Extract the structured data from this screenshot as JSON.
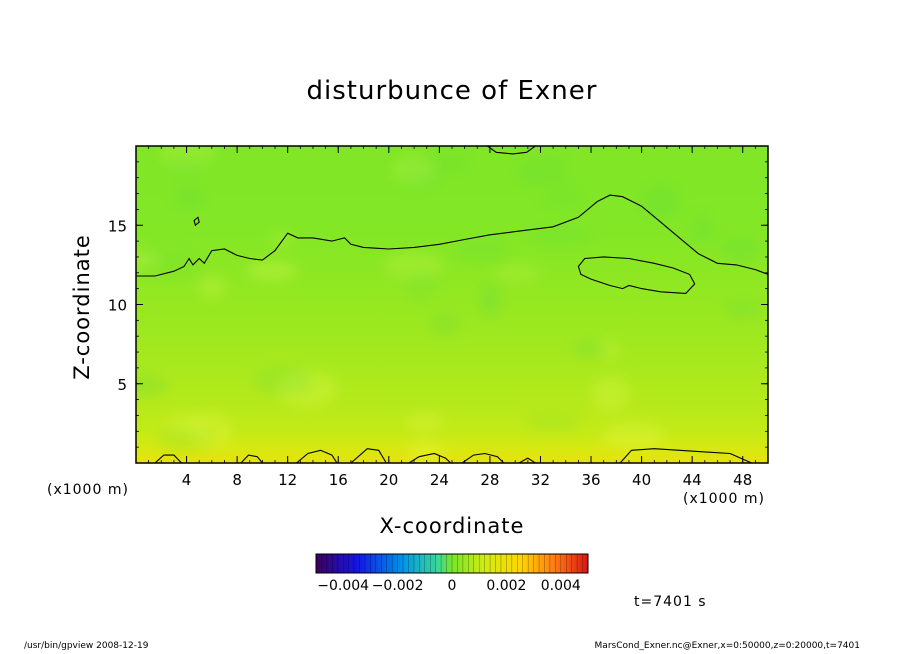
{
  "chart_data": {
    "type": "heatmap",
    "title": "disturbunce of Exner",
    "xlabel": "X-coordinate",
    "ylabel": "Z-coordinate",
    "x_unit_label": "(x1000 m)",
    "xlim": [
      0,
      50
    ],
    "ylim": [
      0,
      20
    ],
    "x_ticks": [
      4,
      8,
      12,
      16,
      20,
      24,
      28,
      32,
      36,
      40,
      44,
      48
    ],
    "y_ticks": [
      5,
      10,
      15
    ],
    "colorbar": {
      "range": [
        -0.005,
        0.005
      ],
      "tick_values": [
        -0.004,
        -0.002,
        0,
        0.002,
        0.004
      ],
      "tick_labels": [
        "−0.004",
        "−0.002",
        "0",
        "0.002",
        "0.004"
      ]
    },
    "time_label": "t=7401 s",
    "field_profile": {
      "z": [
        0,
        1,
        2,
        4,
        6,
        8,
        10,
        12,
        14,
        16,
        18,
        20
      ],
      "value": [
        0.0018,
        0.0013,
        0.001,
        0.0008,
        0.00065,
        0.00052,
        0.0004,
        0.00028,
        0.00018,
        0.00012,
        0.0001,
        0.0001
      ]
    },
    "contours": [
      {
        "name": "upper",
        "points": [
          [
            0,
            11.8
          ],
          [
            1.5,
            11.8
          ],
          [
            3,
            12.1
          ],
          [
            3.8,
            12.4
          ],
          [
            4.2,
            12.9
          ],
          [
            4.5,
            12.5
          ],
          [
            5,
            12.9
          ],
          [
            5.4,
            12.6
          ],
          [
            6,
            13.4
          ],
          [
            7,
            13.5
          ],
          [
            8,
            13.1
          ],
          [
            9,
            12.9
          ],
          [
            10,
            12.8
          ],
          [
            11,
            13.4
          ],
          [
            12,
            14.5
          ],
          [
            12.8,
            14.2
          ],
          [
            14,
            14.2
          ],
          [
            15.5,
            14.0
          ],
          [
            16.5,
            14.2
          ],
          [
            17,
            13.8
          ],
          [
            18,
            13.6
          ],
          [
            20,
            13.5
          ],
          [
            22,
            13.6
          ],
          [
            24,
            13.8
          ],
          [
            26,
            14.1
          ],
          [
            28,
            14.4
          ],
          [
            30,
            14.6
          ],
          [
            33,
            14.9
          ],
          [
            35,
            15.5
          ],
          [
            36.5,
            16.5
          ],
          [
            37.5,
            16.9
          ],
          [
            38.5,
            16.8
          ],
          [
            40,
            16.2
          ],
          [
            41.5,
            15.2
          ],
          [
            43,
            14.2
          ],
          [
            44.5,
            13.2
          ],
          [
            46,
            12.6
          ],
          [
            47.5,
            12.5
          ],
          [
            49,
            12.2
          ],
          [
            50,
            11.9
          ]
        ]
      },
      {
        "name": "loop",
        "closed": true,
        "points": [
          [
            35,
            12.4
          ],
          [
            35.5,
            12.9
          ],
          [
            37,
            13.0
          ],
          [
            39,
            12.9
          ],
          [
            41,
            12.6
          ],
          [
            42.5,
            12.3
          ],
          [
            43.8,
            11.9
          ],
          [
            44.2,
            11.3
          ],
          [
            43.5,
            10.7
          ],
          [
            41.5,
            10.8
          ],
          [
            40,
            11.0
          ],
          [
            39,
            11.2
          ],
          [
            38.5,
            11.0
          ],
          [
            37.5,
            11.2
          ],
          [
            36,
            11.6
          ],
          [
            35.2,
            11.9
          ]
        ]
      },
      {
        "name": "top",
        "points": [
          [
            27.8,
            20
          ],
          [
            28.5,
            19.6
          ],
          [
            29.8,
            19.5
          ],
          [
            30.9,
            19.6
          ],
          [
            31.6,
            20
          ]
        ]
      },
      {
        "name": "blip",
        "closed": true,
        "points": [
          [
            4.6,
            15.3
          ],
          [
            4.9,
            15.5
          ],
          [
            5.0,
            15.2
          ],
          [
            4.7,
            15.0
          ]
        ]
      },
      {
        "name": "bump1",
        "points": [
          [
            1.5,
            0
          ],
          [
            2.2,
            0.5
          ],
          [
            3.0,
            0.5
          ],
          [
            3.6,
            0
          ]
        ]
      },
      {
        "name": "bump2",
        "points": [
          [
            8.3,
            0
          ],
          [
            8.9,
            0.5
          ],
          [
            9.6,
            0.4
          ],
          [
            10.0,
            0
          ]
        ]
      },
      {
        "name": "bump3",
        "points": [
          [
            12.7,
            0
          ],
          [
            13.6,
            0.6
          ],
          [
            14.6,
            0.8
          ],
          [
            15.5,
            0.5
          ],
          [
            15.9,
            0
          ]
        ]
      },
      {
        "name": "bump4",
        "points": [
          [
            17.0,
            0
          ],
          [
            18.3,
            0.9
          ],
          [
            19.2,
            0.8
          ],
          [
            19.8,
            0
          ]
        ]
      },
      {
        "name": "bump5",
        "points": [
          [
            21.6,
            0
          ],
          [
            22.4,
            0.4
          ],
          [
            23.6,
            0.6
          ],
          [
            24.5,
            0.3
          ],
          [
            24.9,
            0
          ]
        ]
      },
      {
        "name": "bump6",
        "points": [
          [
            25.8,
            0
          ],
          [
            26.7,
            0.5
          ],
          [
            27.6,
            0.6
          ],
          [
            28.6,
            0.4
          ],
          [
            29.1,
            0
          ]
        ]
      },
      {
        "name": "bump7",
        "points": [
          [
            30.3,
            0
          ],
          [
            31.0,
            0.3
          ],
          [
            31.6,
            0
          ]
        ]
      },
      {
        "name": "bump8",
        "points": [
          [
            38.3,
            0
          ],
          [
            39.2,
            0.8
          ],
          [
            41.0,
            0.9
          ],
          [
            43.0,
            0.8
          ],
          [
            45.0,
            0.7
          ],
          [
            47.0,
            0.6
          ],
          [
            48.7,
            0
          ]
        ]
      }
    ]
  },
  "footer": {
    "left": "/usr/bin/gpview   2008-12-19",
    "right": "MarsCond_Exner.nc@Exner,x=0:50000,z=0:20000,t=7401"
  }
}
